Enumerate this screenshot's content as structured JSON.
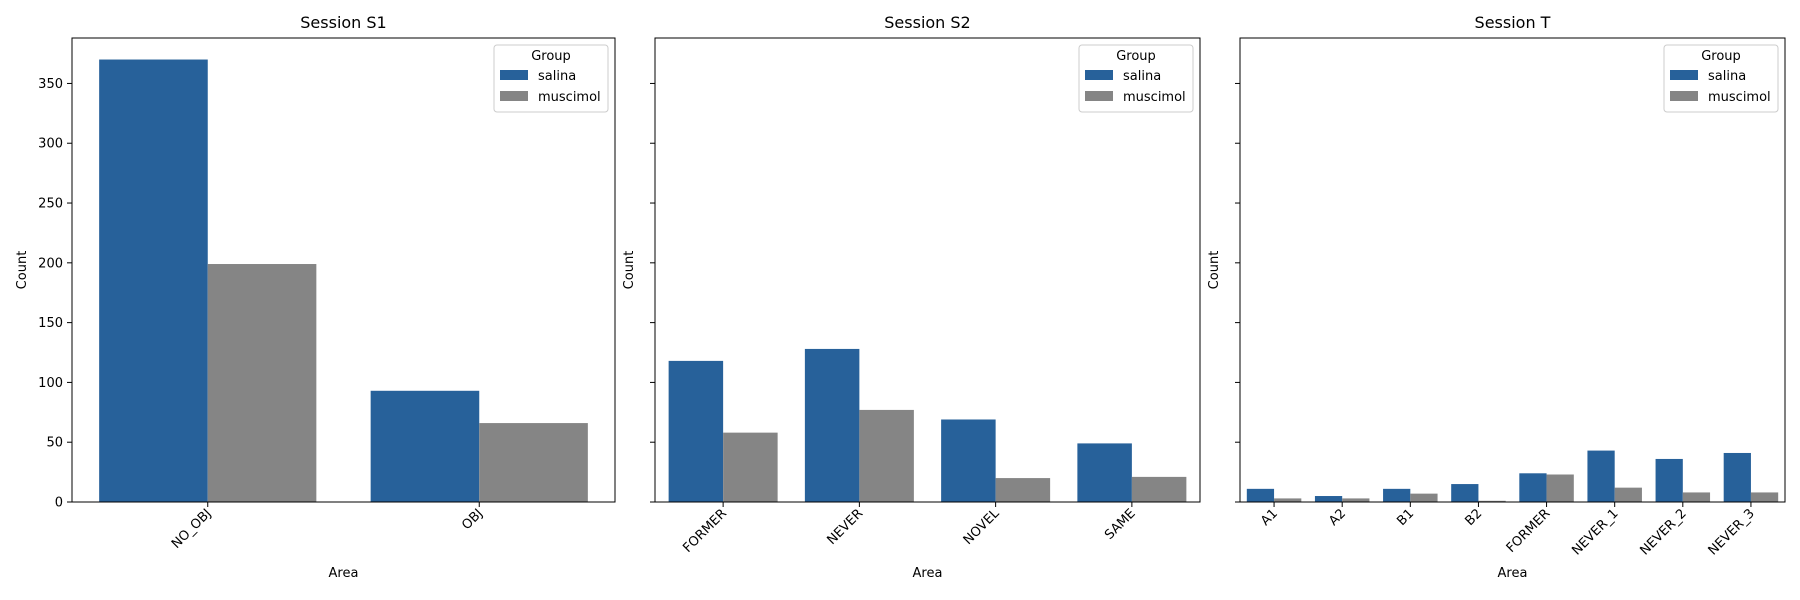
{
  "chart_data": [
    {
      "type": "bar",
      "title": "Session S1",
      "xlabel": "Area",
      "ylabel": "Count",
      "categories": [
        "NO_OBJ",
        "OBJ"
      ],
      "series": [
        {
          "name": "salina",
          "values": [
            370,
            93
          ]
        },
        {
          "name": "muscimol",
          "values": [
            199,
            66
          ]
        }
      ],
      "ylim": [
        0,
        388
      ],
      "yticks": [
        0,
        50,
        100,
        150,
        200,
        250,
        300,
        350
      ],
      "legend": {
        "title": "Group",
        "placement": "top-right"
      }
    },
    {
      "type": "bar",
      "title": "Session S2",
      "xlabel": "Area",
      "ylabel": "Count",
      "categories": [
        "FORMER",
        "NEVER",
        "NOVEL",
        "SAME"
      ],
      "series": [
        {
          "name": "salina",
          "values": [
            118,
            128,
            69,
            49
          ]
        },
        {
          "name": "muscimol",
          "values": [
            58,
            77,
            20,
            21
          ]
        }
      ],
      "ylim": [
        0,
        388
      ],
      "legend": {
        "title": "Group",
        "placement": "top-right"
      }
    },
    {
      "type": "bar",
      "title": "Session T",
      "xlabel": "Area",
      "ylabel": "Count",
      "categories": [
        "A1",
        "A2",
        "B1",
        "B2",
        "FORMER",
        "NEVER_1",
        "NEVER_2",
        "NEVER_3"
      ],
      "series": [
        {
          "name": "salina",
          "values": [
            11,
            5,
            11,
            15,
            24,
            43,
            36,
            41
          ]
        },
        {
          "name": "muscimol",
          "values": [
            3,
            3,
            7,
            1,
            23,
            12,
            8,
            8
          ]
        }
      ],
      "ylim": [
        0,
        388
      ],
      "legend": {
        "title": "Group",
        "placement": "top-right"
      }
    }
  ],
  "colors": {
    "salina": "#27619a",
    "muscimol": "#858585"
  }
}
